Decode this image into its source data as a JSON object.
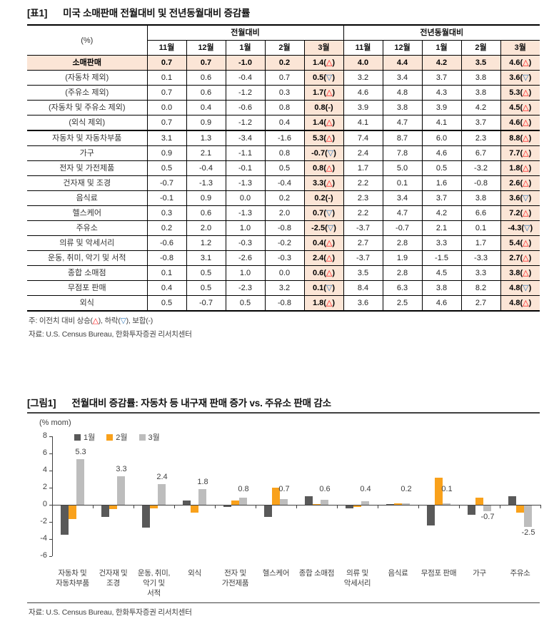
{
  "table": {
    "tag": "[표1]",
    "title": "미국 소매판매 전월대비 및 전년동월대비 증감률",
    "unit_label": "(%)",
    "group_headers": [
      "전월대비",
      "전년동월대비"
    ],
    "month_headers": [
      "11월",
      "12월",
      "1월",
      "2월",
      "3월"
    ],
    "rows": [
      {
        "label": "소매판매",
        "hl": true,
        "mom": [
          "0.7",
          "0.7",
          "-1.0",
          "0.2"
        ],
        "mom3": "1.4",
        "mom3s": "up",
        "yoy": [
          "4.0",
          "4.4",
          "4.2",
          "3.5"
        ],
        "yoy3": "4.6",
        "yoy3s": "up"
      },
      {
        "label": "(자동차 제외)",
        "mom": [
          "0.1",
          "0.6",
          "-0.4",
          "0.7"
        ],
        "mom3": "0.5",
        "mom3s": "down",
        "yoy": [
          "3.2",
          "3.4",
          "3.7",
          "3.8"
        ],
        "yoy3": "3.6",
        "yoy3s": "down"
      },
      {
        "label": "(주유소 제외)",
        "mom": [
          "0.7",
          "0.6",
          "-1.2",
          "0.3"
        ],
        "mom3": "1.7",
        "mom3s": "up",
        "yoy": [
          "4.6",
          "4.8",
          "4.3",
          "3.8"
        ],
        "yoy3": "5.3",
        "yoy3s": "up"
      },
      {
        "label": "(자동차 및 주유소 제외)",
        "mom": [
          "0.0",
          "0.4",
          "-0.6",
          "0.8"
        ],
        "mom3": "0.8",
        "mom3s": "flat",
        "yoy": [
          "3.9",
          "3.8",
          "3.9",
          "4.2"
        ],
        "yoy3": "4.5",
        "yoy3s": "up"
      },
      {
        "label": "(외식 제외)",
        "thick": true,
        "mom": [
          "0.7",
          "0.9",
          "-1.2",
          "0.4"
        ],
        "mom3": "1.4",
        "mom3s": "up",
        "yoy": [
          "4.1",
          "4.7",
          "4.1",
          "3.7"
        ],
        "yoy3": "4.6",
        "yoy3s": "up"
      },
      {
        "label": "자동차 및 자동차부품",
        "mom": [
          "3.1",
          "1.3",
          "-3.4",
          "-1.6"
        ],
        "mom3": "5.3",
        "mom3s": "up",
        "yoy": [
          "7.4",
          "8.7",
          "6.0",
          "2.3"
        ],
        "yoy3": "8.8",
        "yoy3s": "up"
      },
      {
        "label": "가구",
        "mom": [
          "0.9",
          "2.1",
          "-1.1",
          "0.8"
        ],
        "mom3": "-0.7",
        "mom3s": "down",
        "yoy": [
          "2.4",
          "7.8",
          "4.6",
          "6.7"
        ],
        "yoy3": "7.7",
        "yoy3s": "up"
      },
      {
        "label": "전자 및 가전제품",
        "mom": [
          "0.5",
          "-0.4",
          "-0.1",
          "0.5"
        ],
        "mom3": "0.8",
        "mom3s": "up",
        "yoy": [
          "1.7",
          "5.0",
          "0.5",
          "-3.2"
        ],
        "yoy3": "1.8",
        "yoy3s": "up"
      },
      {
        "label": "건자재 및 조경",
        "mom": [
          "-0.7",
          "-1.3",
          "-1.3",
          "-0.4"
        ],
        "mom3": "3.3",
        "mom3s": "up",
        "yoy": [
          "2.2",
          "0.1",
          "1.6",
          "-0.8"
        ],
        "yoy3": "2.6",
        "yoy3s": "up"
      },
      {
        "label": "음식료",
        "mom": [
          "-0.1",
          "0.9",
          "0.0",
          "0.2"
        ],
        "mom3": "0.2",
        "mom3s": "flat",
        "yoy": [
          "2.3",
          "3.4",
          "3.7",
          "3.8"
        ],
        "yoy3": "3.6",
        "yoy3s": "down"
      },
      {
        "label": "헬스케어",
        "mom": [
          "0.3",
          "0.6",
          "-1.3",
          "2.0"
        ],
        "mom3": "0.7",
        "mom3s": "down",
        "yoy": [
          "2.2",
          "4.7",
          "4.2",
          "6.6"
        ],
        "yoy3": "7.2",
        "yoy3s": "up"
      },
      {
        "label": "주유소",
        "mom": [
          "0.2",
          "2.0",
          "1.0",
          "-0.8"
        ],
        "mom3": "-2.5",
        "mom3s": "down",
        "yoy": [
          "-3.7",
          "-0.7",
          "2.1",
          "0.1"
        ],
        "yoy3": "-4.3",
        "yoy3s": "down"
      },
      {
        "label": "의류 및 악세서리",
        "mom": [
          "-0.6",
          "1.2",
          "-0.3",
          "-0.2"
        ],
        "mom3": "0.4",
        "mom3s": "up",
        "yoy": [
          "2.7",
          "2.8",
          "3.3",
          "1.7"
        ],
        "yoy3": "5.4",
        "yoy3s": "up"
      },
      {
        "label": "운동, 취미, 악기 및 서적",
        "mom": [
          "-0.8",
          "3.1",
          "-2.6",
          "-0.3"
        ],
        "mom3": "2.4",
        "mom3s": "up",
        "yoy": [
          "-3.7",
          "1.9",
          "-1.5",
          "-3.3"
        ],
        "yoy3": "2.7",
        "yoy3s": "up"
      },
      {
        "label": "종합 소매점",
        "mom": [
          "0.1",
          "0.5",
          "1.0",
          "0.0"
        ],
        "mom3": "0.6",
        "mom3s": "up",
        "yoy": [
          "3.5",
          "2.8",
          "4.5",
          "3.3"
        ],
        "yoy3": "3.8",
        "yoy3s": "up"
      },
      {
        "label": "무점포 판매",
        "mom": [
          "0.4",
          "0.5",
          "-2.3",
          "3.2"
        ],
        "mom3": "0.1",
        "mom3s": "down",
        "yoy": [
          "8.4",
          "6.3",
          "3.8",
          "8.2"
        ],
        "yoy3": "4.8",
        "yoy3s": "down"
      },
      {
        "label": "외식",
        "mom": [
          "0.5",
          "-0.7",
          "0.5",
          "-0.8"
        ],
        "mom3": "1.8",
        "mom3s": "up",
        "yoy": [
          "3.6",
          "2.5",
          "4.6",
          "2.7"
        ],
        "yoy3": "4.8",
        "yoy3s": "up"
      }
    ],
    "note": "주: 이전치 대비 상승(△), 하락(▽), 보합(-)",
    "source": "자료: U.S. Census Bureau, 한화투자증권 리서치센터"
  },
  "chart": {
    "tag": "[그림1]",
    "title": "전월대비 증감률: 자동차 등 내구재 판매 증가 vs. 주유소 판매 감소",
    "source": "자료: U.S. Census Bureau, 한화투자증권 리서치센터"
  },
  "chart_data": {
    "type": "bar",
    "title": "전월대비 증감률: 자동차 등 내구재 판매 증가 vs. 주유소 판매 감소",
    "ylabel": "(% mom)",
    "ylim": [
      -6,
      8
    ],
    "yticks": [
      8,
      6,
      4,
      2,
      0,
      -2,
      -4,
      -6
    ],
    "grid": false,
    "legend_position": "top-left",
    "categories": [
      "자동차 및 자동차부품",
      "건자재 및 조경",
      "운동, 취미, 악기 및 서적",
      "외식",
      "전자 및 가전제품",
      "헬스케어",
      "종합 소매점",
      "의류 및 악세서리",
      "음식료",
      "무점포 판매",
      "가구",
      "주유소"
    ],
    "xtick_lines": [
      [
        "자동차 및",
        "자동차부품"
      ],
      [
        "건자재 및",
        "조경"
      ],
      [
        "운동, 취미,",
        "악기 및",
        "서적"
      ],
      [
        "외식"
      ],
      [
        "전자 및",
        "가전제품"
      ],
      [
        "헬스케어"
      ],
      [
        "종합 소매점"
      ],
      [
        "의류 및",
        "악세서리"
      ],
      [
        "음식료"
      ],
      [
        "무점포 판매"
      ],
      [
        "가구"
      ],
      [
        "주유소"
      ]
    ],
    "series": [
      {
        "name": "1월",
        "color": "#595959",
        "values": [
          -3.4,
          -1.3,
          -2.6,
          0.5,
          -0.1,
          -1.3,
          1.0,
          -0.3,
          0.0,
          -2.3,
          -1.1,
          1.0
        ]
      },
      {
        "name": "2월",
        "color": "#F9A11B",
        "values": [
          -1.6,
          -0.4,
          -0.3,
          -0.8,
          0.5,
          2.0,
          0.0,
          -0.2,
          0.2,
          3.2,
          0.8,
          -0.8
        ]
      },
      {
        "name": "3월",
        "color": "#BDBDBD",
        "values": [
          5.3,
          3.3,
          2.4,
          1.8,
          0.8,
          0.7,
          0.6,
          0.4,
          0.2,
          0.1,
          -0.7,
          -2.5
        ]
      }
    ],
    "data_labels": [
      "5.3",
      "3.3",
      "2.4",
      "1.8",
      "0.8",
      "0.7",
      "0.6",
      "0.4",
      "0.2",
      "0.1",
      "-0.7",
      "-2.5"
    ]
  },
  "colors": {
    "highlight_bg": "#FBE5D6",
    "up_symbol": "#FF0000",
    "down_symbol": "#2E75B6",
    "bar_jan": "#595959",
    "bar_feb": "#F9A11B",
    "bar_mar": "#BDBDBD"
  }
}
